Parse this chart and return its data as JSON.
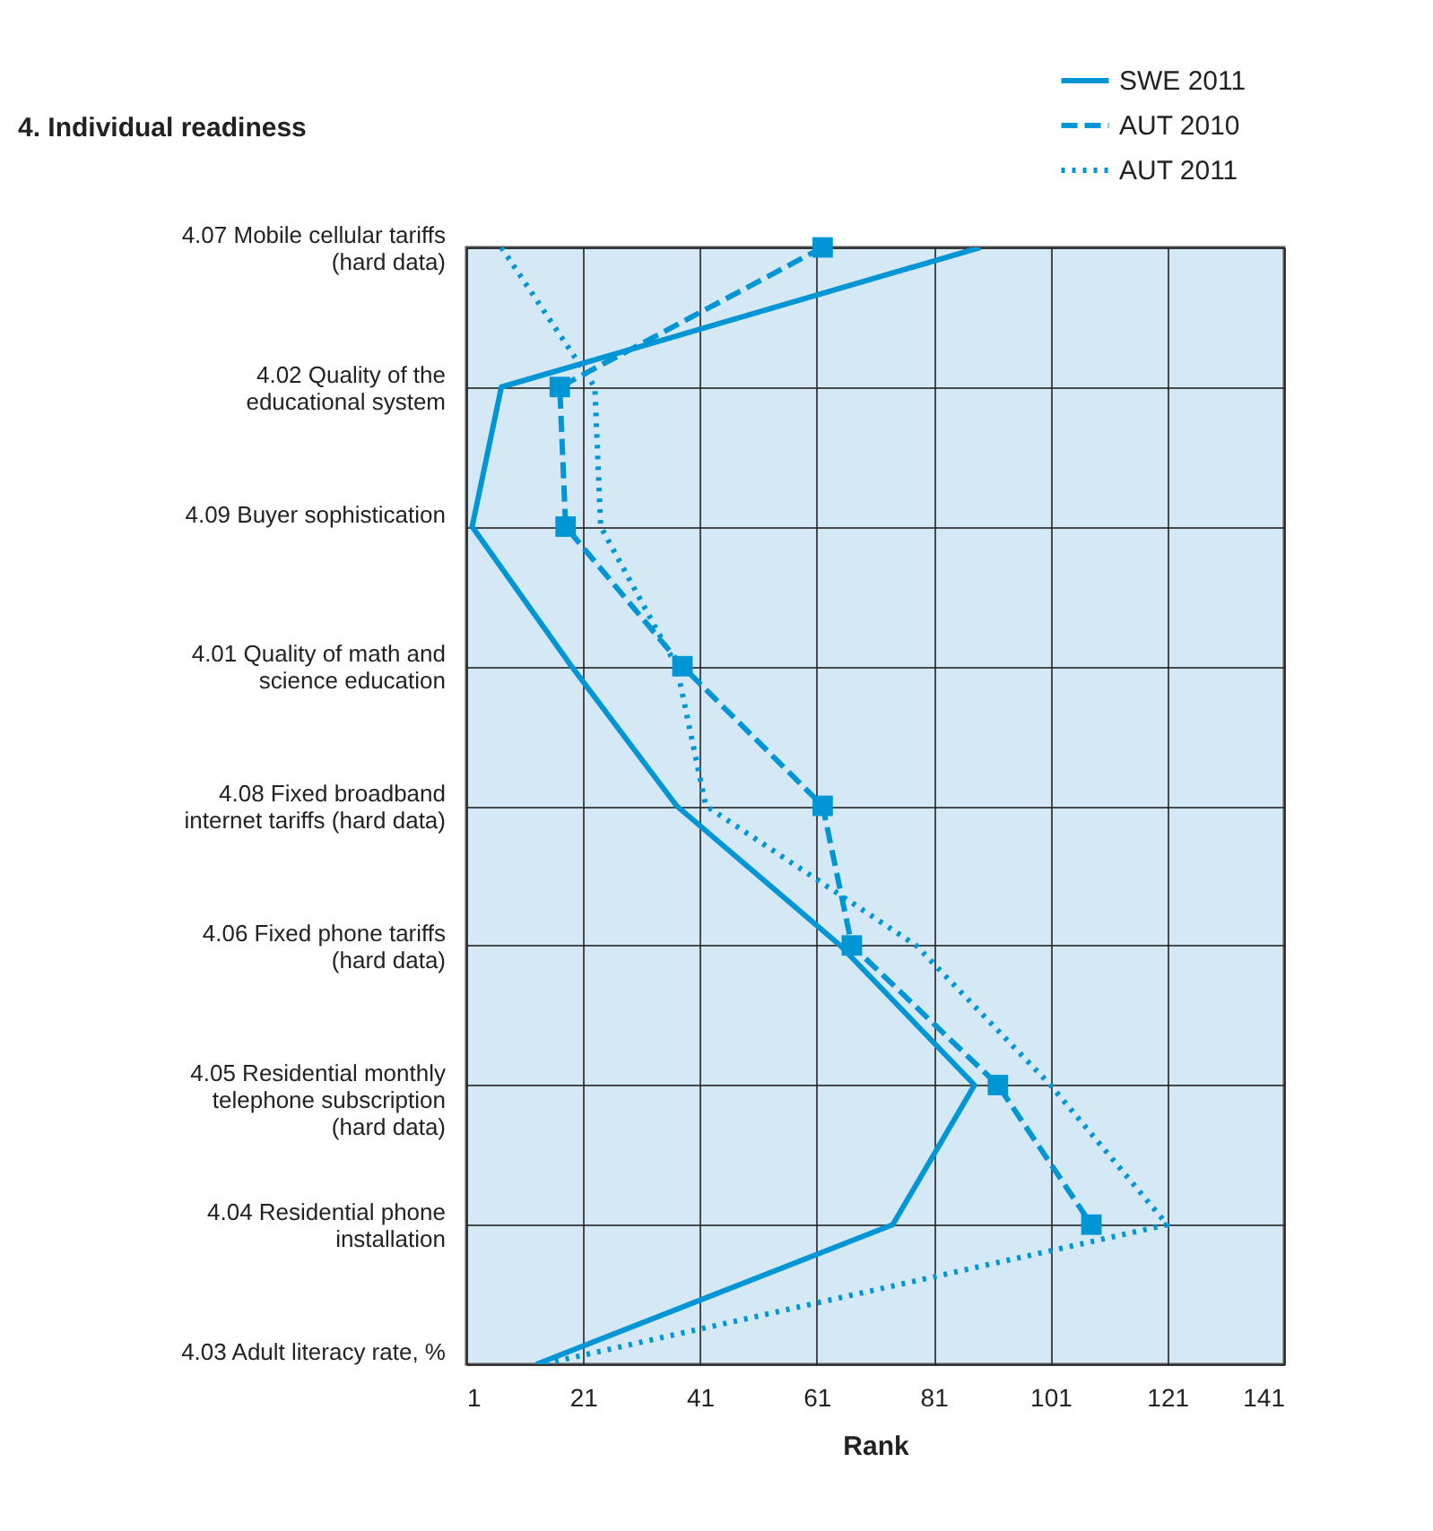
{
  "chart_data": {
    "type": "line",
    "title": "4. Individual readiness",
    "xlabel": "Rank",
    "categories": [
      "4.07 Mobile cellular tariffs\n(hard data)",
      "4.02 Quality of the\neducational system",
      "4.09 Buyer sophistication",
      "4.01 Quality of math and\nscience education",
      "4.08 Fixed broadband\ninternet tariffs (hard data)",
      "4.06 Fixed phone tariffs\n(hard data)",
      "4.05 Residential monthly\ntelephone subscription\n(hard data)",
      "4.04 Residential phone\ninstallation",
      "4.03 Adult literacy rate, %"
    ],
    "orientation": "horizontal",
    "xlim": [
      1,
      141
    ],
    "xticks": [
      1,
      21,
      41,
      61,
      81,
      101,
      121,
      141
    ],
    "grid": true,
    "legend": "top right",
    "series": [
      {
        "name": "SWE 2011",
        "color": "#0096d6",
        "line_style": "solid",
        "marker": "none",
        "values": [
          89,
          7,
          2,
          19,
          37,
          65,
          88,
          74,
          13
        ]
      },
      {
        "name": "AUT 2010",
        "color": "#0096d6",
        "line_style": "dashed",
        "marker": "square",
        "values": [
          62,
          17,
          18,
          38,
          62,
          67,
          92,
          108,
          null
        ]
      },
      {
        "name": "AUT 2011",
        "color": "#0096d6",
        "line_style": "dotted",
        "marker": "none",
        "values": [
          7,
          23,
          24,
          37,
          42,
          78,
          101,
          121,
          14
        ]
      }
    ]
  }
}
